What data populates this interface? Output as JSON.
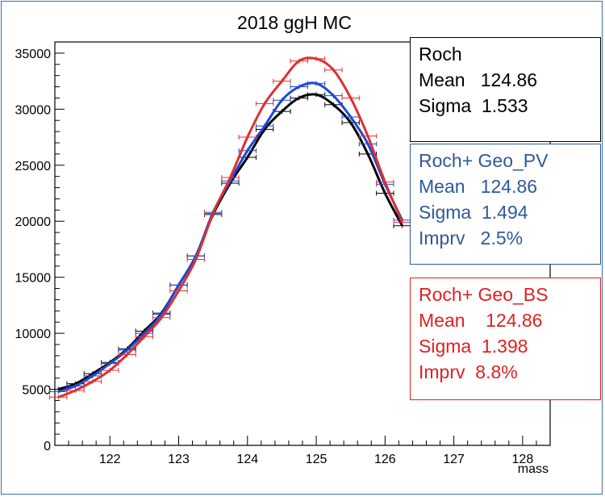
{
  "chart_data": {
    "type": "line",
    "title": "2018 ggH MC",
    "xlabel": "mass",
    "ylabel": "",
    "xlim": [
      121.2,
      128.4
    ],
    "ylim": [
      0,
      36000
    ],
    "xticks": [
      122,
      123,
      124,
      125,
      126,
      127,
      128
    ],
    "yticks": [
      0,
      5000,
      10000,
      15000,
      20000,
      25000,
      30000,
      35000
    ],
    "grid": false,
    "legend": "right",
    "series": [
      {
        "name": "Roch",
        "color": "#000000",
        "mean": "124.86",
        "sigma": "1.533",
        "x": [
          121.25,
          121.5,
          121.75,
          122.0,
          122.25,
          122.5,
          122.75,
          123.0,
          123.25,
          123.5,
          123.75,
          124.0,
          124.25,
          124.5,
          124.75,
          125.0,
          125.25,
          125.5,
          125.75,
          126.0,
          126.25
        ],
        "values": [
          5000,
          5500,
          6400,
          7400,
          8600,
          10200,
          11800,
          14300,
          16900,
          20600,
          23400,
          25700,
          28200,
          29800,
          31000,
          31300,
          30400,
          28800,
          26000,
          22500,
          19600
        ]
      },
      {
        "name": "Roch+ Geo_PV",
        "color": "#1f48d8",
        "mean": "124.86",
        "sigma": "1.494",
        "imprv": "2.5%",
        "x": [
          121.25,
          121.5,
          121.75,
          122.0,
          122.25,
          122.5,
          122.75,
          123.0,
          123.25,
          123.5,
          123.75,
          124.0,
          124.25,
          124.5,
          124.75,
          125.0,
          125.25,
          125.5,
          125.75,
          126.0,
          126.25
        ],
        "values": [
          4800,
          5300,
          6200,
          7300,
          8500,
          10000,
          11700,
          14300,
          16900,
          20800,
          23600,
          26300,
          28500,
          30800,
          32000,
          32300,
          31200,
          29300,
          26900,
          23300,
          20100
        ]
      },
      {
        "name": "Roch+ Geo_BS",
        "color": "#e03030",
        "mean": "124.86",
        "sigma": "1.398",
        "imprv": "8.8%",
        "x": [
          121.25,
          121.5,
          121.75,
          122.0,
          122.25,
          122.5,
          122.75,
          123.0,
          123.25,
          123.5,
          123.75,
          124.0,
          124.25,
          124.5,
          124.75,
          125.0,
          125.25,
          125.5,
          125.75,
          126.0,
          126.25
        ],
        "values": [
          4300,
          4900,
          5700,
          6700,
          8100,
          9700,
          11400,
          13800,
          16600,
          20700,
          23900,
          27500,
          30500,
          32500,
          34300,
          34500,
          33500,
          31000,
          27600,
          23500,
          19900
        ]
      }
    ]
  },
  "stat_boxes": [
    {
      "title": "Roch",
      "mean_label": "Mean",
      "mean": "124.86",
      "sigma_label": "Sigma",
      "sigma": "1.533"
    },
    {
      "title": "Roch+ Geo_PV",
      "mean_label": "Mean",
      "mean": "124.86",
      "sigma_label": "Sigma",
      "sigma": "1.494",
      "imprv_label": "Imprv",
      "imprv": "2.5%"
    },
    {
      "title": "Roch+ Geo_BS",
      "mean_label": "Mean",
      "mean": "124.86",
      "sigma_label": "Sigma",
      "sigma": "1.398",
      "imprv_label": "Imprv",
      "imprv": "8.8%"
    }
  ]
}
